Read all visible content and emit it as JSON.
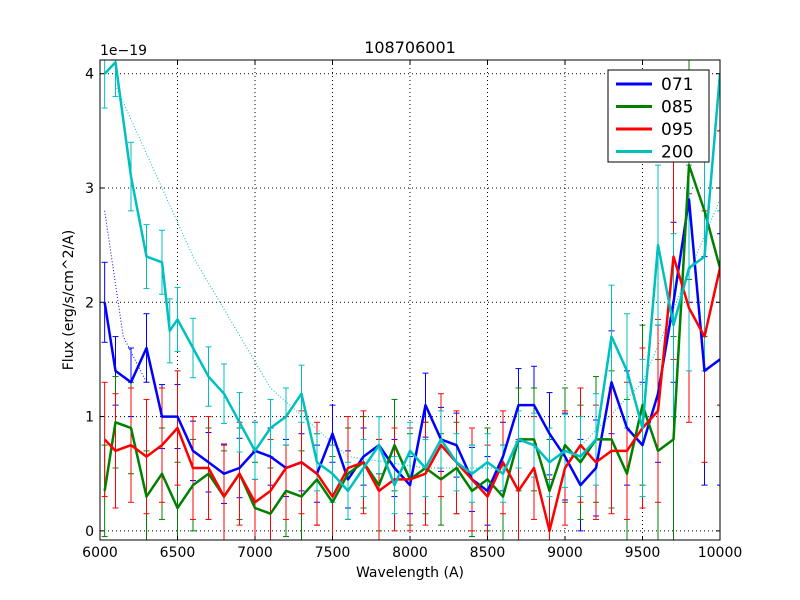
{
  "chart_data": {
    "type": "line",
    "title": "108706001",
    "xlabel": "Wavelength (A)",
    "ylabel": "Flux (erg/s/cm^2/A)",
    "scale_label": "1e−19",
    "xlim": [
      6000,
      10000
    ],
    "ylim": [
      -0.08,
      4.12
    ],
    "xticks": [
      6000,
      6500,
      7000,
      7500,
      8000,
      8500,
      9000,
      9500,
      10000
    ],
    "yticks": [
      0,
      1,
      2,
      3,
      4
    ],
    "grid": true,
    "legend_position": "top-right",
    "series": [
      {
        "name": "071",
        "color": "#0000ff",
        "x": [
          6030,
          6100,
          6200,
          6300,
          6400,
          6500,
          6600,
          6700,
          6800,
          6900,
          7000,
          7100,
          7200,
          7300,
          7400,
          7500,
          7600,
          7700,
          7800,
          7900,
          8000,
          8100,
          8200,
          8300,
          8400,
          8500,
          8600,
          8700,
          8800,
          8900,
          9000,
          9100,
          9200,
          9300,
          9400,
          9500,
          9600,
          9700,
          9800,
          9900,
          10000
        ],
        "y": [
          2.0,
          1.4,
          1.3,
          1.6,
          1.0,
          1.0,
          0.7,
          0.6,
          0.5,
          0.55,
          0.7,
          0.65,
          0.55,
          0.6,
          0.5,
          0.85,
          0.45,
          0.65,
          0.75,
          0.55,
          0.4,
          1.1,
          0.8,
          0.75,
          0.45,
          0.35,
          0.65,
          1.1,
          1.1,
          0.85,
          0.65,
          0.4,
          0.55,
          1.3,
          0.9,
          0.75,
          1.2,
          2.0,
          2.9,
          1.4,
          1.5
        ],
        "err": [
          0.35,
          0.3,
          0.3,
          0.3,
          0.28,
          0.28,
          0.26,
          0.26,
          0.26,
          0.26,
          0.25,
          0.25,
          0.25,
          0.25,
          0.25,
          0.25,
          0.25,
          0.25,
          0.25,
          0.25,
          0.25,
          0.28,
          0.28,
          0.28,
          0.28,
          0.3,
          0.3,
          0.32,
          0.34,
          0.36,
          0.38,
          0.4,
          0.42,
          0.45,
          0.5,
          0.55,
          0.6,
          0.7,
          0.9,
          1.0,
          1.1
        ]
      },
      {
        "name": "085",
        "color": "#008000",
        "x": [
          6030,
          6100,
          6200,
          6300,
          6400,
          6500,
          6600,
          6700,
          6800,
          6900,
          7000,
          7100,
          7200,
          7300,
          7400,
          7500,
          7600,
          7700,
          7800,
          7900,
          8000,
          8100,
          8200,
          8300,
          8400,
          8500,
          8600,
          8700,
          8800,
          8900,
          9000,
          9100,
          9200,
          9300,
          9400,
          9500,
          9600,
          9700,
          9800,
          9900,
          10000
        ],
        "y": [
          0.35,
          0.95,
          0.9,
          0.3,
          0.5,
          0.2,
          0.4,
          0.5,
          0.3,
          0.5,
          0.2,
          0.15,
          0.35,
          0.3,
          0.45,
          0.25,
          0.5,
          0.6,
          0.4,
          0.75,
          0.45,
          0.55,
          0.45,
          0.55,
          0.35,
          0.45,
          0.3,
          0.8,
          0.8,
          0.35,
          0.75,
          0.6,
          0.8,
          0.8,
          0.5,
          1.1,
          0.7,
          0.8,
          3.2,
          2.8,
          2.3
        ],
        "err": [
          0.4,
          0.4,
          0.4,
          0.4,
          0.4,
          0.4,
          0.4,
          0.4,
          0.4,
          0.4,
          0.4,
          0.4,
          0.4,
          0.4,
          0.4,
          0.4,
          0.4,
          0.4,
          0.4,
          0.4,
          0.4,
          0.4,
          0.4,
          0.4,
          0.4,
          0.45,
          0.45,
          0.45,
          0.45,
          0.45,
          0.5,
          0.5,
          0.55,
          0.6,
          0.65,
          0.7,
          0.8,
          0.9,
          1.0,
          1.1,
          1.2
        ]
      },
      {
        "name": "095",
        "color": "#ff0000",
        "x": [
          6030,
          6100,
          6200,
          6300,
          6400,
          6500,
          6600,
          6700,
          6800,
          6900,
          7000,
          7100,
          7200,
          7300,
          7400,
          7500,
          7600,
          7700,
          7800,
          7900,
          8000,
          8100,
          8200,
          8300,
          8400,
          8500,
          8600,
          8700,
          8800,
          8900,
          9000,
          9100,
          9200,
          9300,
          9400,
          9500,
          9600,
          9700,
          9800,
          9900,
          10000
        ],
        "y": [
          0.8,
          0.7,
          0.75,
          0.65,
          0.75,
          0.9,
          0.55,
          0.55,
          0.3,
          0.5,
          0.25,
          0.35,
          0.55,
          0.6,
          0.5,
          0.3,
          0.55,
          0.6,
          0.35,
          0.45,
          0.45,
          0.5,
          0.75,
          0.6,
          0.45,
          0.3,
          0.6,
          0.35,
          0.55,
          0.0,
          0.55,
          0.75,
          0.6,
          0.7,
          0.7,
          0.9,
          1.05,
          2.4,
          1.95,
          1.7,
          2.3
        ],
        "err": [
          0.5,
          0.5,
          0.5,
          0.5,
          0.5,
          0.5,
          0.45,
          0.45,
          0.45,
          0.45,
          0.45,
          0.45,
          0.45,
          0.45,
          0.45,
          0.45,
          0.45,
          0.45,
          0.45,
          0.45,
          0.45,
          0.45,
          0.45,
          0.45,
          0.45,
          0.45,
          0.45,
          0.45,
          0.45,
          0.45,
          0.5,
          0.5,
          0.5,
          0.55,
          0.6,
          0.7,
          0.8,
          0.9,
          1.0,
          1.1,
          1.2
        ]
      },
      {
        "name": "200",
        "color": "#00bfbf",
        "x": [
          6030,
          6100,
          6200,
          6300,
          6400,
          6450,
          6500,
          6600,
          6700,
          6800,
          6900,
          7000,
          7100,
          7200,
          7300,
          7400,
          7500,
          7600,
          7700,
          7800,
          7900,
          8000,
          8100,
          8200,
          8300,
          8400,
          8500,
          8600,
          8700,
          8800,
          8900,
          9000,
          9100,
          9200,
          9300,
          9400,
          9500,
          9600,
          9700,
          9800,
          9900,
          10000
        ],
        "y": [
          4.0,
          4.1,
          3.1,
          2.4,
          2.35,
          1.75,
          1.85,
          1.6,
          1.35,
          1.2,
          0.95,
          0.7,
          0.9,
          1.0,
          1.2,
          0.6,
          0.5,
          0.35,
          0.55,
          0.75,
          0.4,
          0.7,
          0.55,
          0.8,
          0.6,
          0.5,
          0.6,
          0.5,
          0.8,
          0.75,
          0.6,
          0.7,
          0.65,
          0.8,
          1.7,
          1.4,
          0.9,
          2.5,
          1.8,
          2.3,
          2.4,
          4.0
        ],
        "err": [
          0.3,
          0.3,
          0.3,
          0.28,
          0.28,
          0.28,
          0.28,
          0.26,
          0.26,
          0.26,
          0.26,
          0.25,
          0.25,
          0.25,
          0.25,
          0.25,
          0.25,
          0.25,
          0.25,
          0.25,
          0.25,
          0.25,
          0.25,
          0.25,
          0.25,
          0.25,
          0.25,
          0.25,
          0.25,
          0.28,
          0.3,
          0.32,
          0.35,
          0.4,
          0.45,
          0.5,
          0.6,
          0.7,
          0.8,
          0.9,
          1.0,
          1.2
        ]
      }
    ],
    "fits": [
      {
        "name": "071",
        "color": "#0000ff",
        "x": [
          6030,
          6150,
          6300
        ],
        "y": [
          2.8,
          1.7,
          1.3
        ]
      },
      {
        "name": "200",
        "color": "#00bfbf",
        "x": [
          6100,
          6600,
          7100,
          7600,
          8100,
          8600
        ],
        "y": [
          3.9,
          2.4,
          1.25,
          0.65,
          0.55,
          0.55
        ]
      },
      {
        "name": "200",
        "color": "#00bfbf",
        "x": [
          9000,
          9500,
          10000
        ],
        "y": [
          0.6,
          1.3,
          2.9
        ]
      }
    ]
  }
}
